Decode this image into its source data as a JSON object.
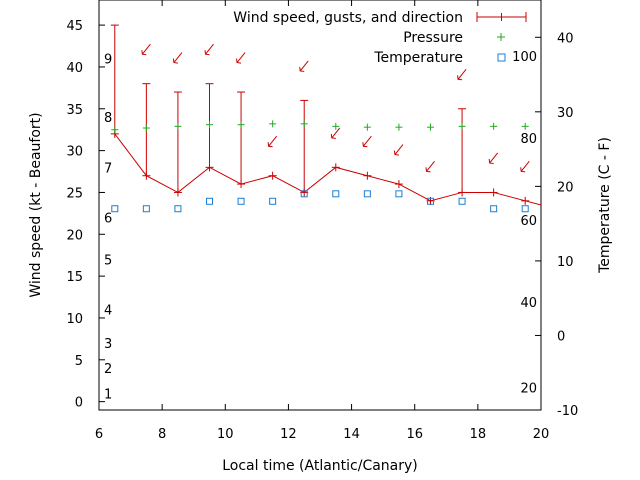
{
  "chart_data": {
    "type": "line",
    "xlabel": "Local time (Atlantic/Canary)",
    "ylabel_left": "Wind speed (kt - Beaufort)",
    "ylabel_right": "Temperature (C - F)",
    "xlim": [
      6,
      20
    ],
    "ylim_left": [
      -1,
      48
    ],
    "ylim_right": [
      -10,
      45
    ],
    "x_ticks": [
      6,
      8,
      10,
      12,
      14,
      16,
      18,
      20
    ],
    "y_ticks_left": [
      0,
      5,
      10,
      15,
      20,
      25,
      30,
      35,
      40,
      45
    ],
    "y_ticks_right": [
      -10,
      0,
      10,
      20,
      30,
      40
    ],
    "beaufort_labels": [
      {
        "label": "1",
        "wind": 1
      },
      {
        "label": "2",
        "wind": 4
      },
      {
        "label": "3",
        "wind": 7
      },
      {
        "label": "4",
        "wind": 11
      },
      {
        "label": "5",
        "wind": 17
      },
      {
        "label": "6",
        "wind": 22
      },
      {
        "label": "7",
        "wind": 28
      },
      {
        "label": "8",
        "wind": 34
      },
      {
        "label": "9",
        "wind": 41
      }
    ],
    "fahrenheit_labels": [
      {
        "label": "20",
        "temp": -7
      },
      {
        "label": "40",
        "temp": 4.5
      },
      {
        "label": "60",
        "temp": 15.5
      },
      {
        "label": "80",
        "temp": 26.5
      },
      {
        "label": "100",
        "temp": 37.5
      }
    ],
    "legend": {
      "placement": "top-right",
      "wind": "Wind speed, gusts, and direction",
      "pressure": "Pressure",
      "temperature": "Temperature"
    },
    "colors": {
      "wind": "#cc0000",
      "pressure": "#22aa22",
      "temperature": "#1a7fd4"
    },
    "series": [
      {
        "name": "Wind speed, gusts, and direction",
        "x": [
          6.5,
          7.5,
          8.5,
          9.5,
          10.5,
          11.5,
          12.5,
          13.5,
          14.5,
          15.5,
          16.5,
          17.5,
          18.5,
          19.5,
          20
        ],
        "speed": [
          32,
          27,
          25,
          28,
          26,
          27,
          25,
          28,
          27,
          26,
          24,
          25,
          25,
          24,
          23.5
        ],
        "gust": [
          45,
          38,
          37,
          38,
          37,
          27,
          36,
          28,
          27,
          26,
          24,
          35,
          25,
          24,
          23.5
        ]
      },
      {
        "name": "Pressure",
        "x": [
          6.5,
          7.5,
          8.5,
          9.5,
          10.5,
          11.5,
          12.5,
          13.5,
          14.5,
          15.5,
          16.5,
          17.5,
          18.5,
          19.5
        ],
        "y": [
          32.5,
          32.7,
          32.9,
          33.1,
          33.1,
          33.2,
          33.2,
          32.9,
          32.8,
          32.8,
          32.8,
          32.9,
          32.9,
          32.9
        ]
      },
      {
        "name": "Temperature",
        "x": [
          6.5,
          7.5,
          8.5,
          9.5,
          10.5,
          11.5,
          12.5,
          13.5,
          14.5,
          15.5,
          16.5,
          17.5,
          18.5,
          19.5
        ],
        "y": [
          17,
          17,
          17,
          18,
          18,
          18,
          19,
          19,
          19,
          19,
          18,
          18,
          17,
          17
        ]
      }
    ],
    "wind_arrows": [
      {
        "x": 7.5,
        "y": 42
      },
      {
        "x": 8.5,
        "y": 41
      },
      {
        "x": 9.5,
        "y": 42
      },
      {
        "x": 10.5,
        "y": 41
      },
      {
        "x": 11.5,
        "y": 31
      },
      {
        "x": 12.5,
        "y": 40
      },
      {
        "x": 13.5,
        "y": 32
      },
      {
        "x": 14.5,
        "y": 31
      },
      {
        "x": 15.5,
        "y": 30
      },
      {
        "x": 16.5,
        "y": 28
      },
      {
        "x": 17.5,
        "y": 39
      },
      {
        "x": 18.5,
        "y": 29
      },
      {
        "x": 19.5,
        "y": 28
      }
    ]
  }
}
